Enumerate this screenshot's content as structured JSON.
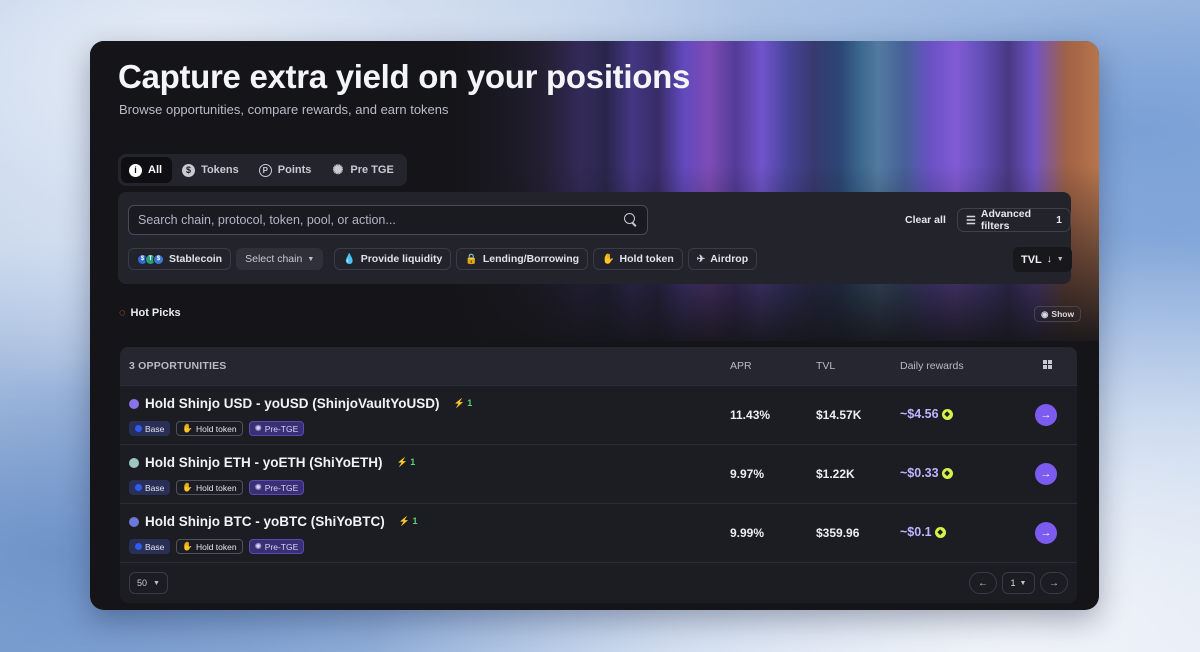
{
  "hero": {
    "title": "Capture extra yield on your positions",
    "subtitle": "Browse opportunities, compare rewards, and earn tokens"
  },
  "type_tabs": [
    {
      "label": "All",
      "icon": "info-icon",
      "active": true
    },
    {
      "label": "Tokens",
      "icon": "dollar-icon",
      "active": false
    },
    {
      "label": "Points",
      "icon": "points-icon",
      "active": false
    },
    {
      "label": "Pre TGE",
      "icon": "sparkle-icon",
      "active": false
    }
  ],
  "filters": {
    "search_placeholder": "Search chain, protocol, token, pool, or action...",
    "clear_all": "Clear all",
    "advanced_filters": "Advanced filters",
    "advanced_filters_count": "1",
    "chips": {
      "stablecoin": "Stablecoin",
      "select_chain": "Select chain",
      "provide_liquidity": "Provide liquidity",
      "lending": "Lending/Borrowing",
      "hold_token": "Hold token",
      "airdrop": "Airdrop"
    },
    "sort_label": "TVL"
  },
  "hot_picks": {
    "label": "Hot Picks",
    "show": "Show"
  },
  "table": {
    "count_label": "3 OPPORTUNITIES",
    "headers": {
      "apr": "APR",
      "tvl": "TVL",
      "daily": "Daily rewards"
    },
    "rows": [
      {
        "name": "Hold Shinjo USD - yoUSD (ShinjoVaultYoUSD)",
        "boost": "1",
        "dot_color": "#8a73e6",
        "tags": {
          "chain": "Base",
          "action": "Hold token",
          "status": "Pre-TGE"
        },
        "apr": "11.43%",
        "tvl": "$14.57K",
        "daily": "~$4.56"
      },
      {
        "name": "Hold Shinjo ETH - yoETH (ShiYoETH)",
        "boost": "1",
        "dot_color": "#9fc6c2",
        "tags": {
          "chain": "Base",
          "action": "Hold token",
          "status": "Pre-TGE"
        },
        "apr": "9.97%",
        "tvl": "$1.22K",
        "daily": "~$0.33"
      },
      {
        "name": "Hold Shinjo BTC - yoBTC (ShiYoBTC)",
        "boost": "1",
        "dot_color": "#6c79d9",
        "tags": {
          "chain": "Base",
          "action": "Hold token",
          "status": "Pre-TGE"
        },
        "apr": "9.99%",
        "tvl": "$359.96",
        "daily": "~$0.1"
      }
    ]
  },
  "pagination": {
    "per_page": "50",
    "page": "1"
  },
  "colors": {
    "accent": "#7c5cf0",
    "reward_text": "#c0b3ff",
    "boost": "#5cd27a",
    "card_bg": "#151519"
  }
}
